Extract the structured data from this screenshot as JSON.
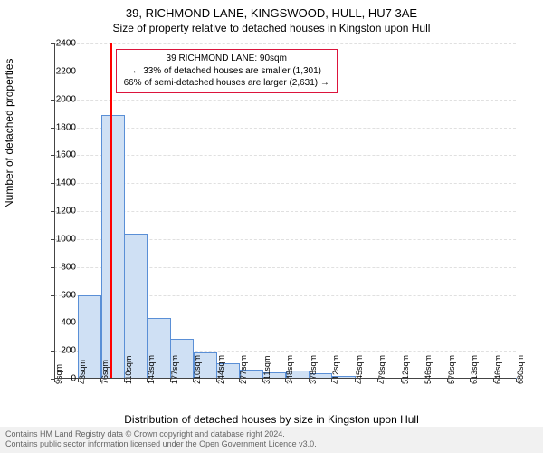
{
  "title": "39, RICHMOND LANE, KINGSWOOD, HULL, HU7 3AE",
  "subtitle": "Size of property relative to detached houses in Kingston upon Hull",
  "ylabel": "Number of detached properties",
  "xlabel": "Distribution of detached houses by size in Kingston upon Hull",
  "chart": {
    "type": "histogram",
    "bar_fill": "#cfe0f4",
    "bar_stroke": "#5a8fd6",
    "grid_color": "#e0e0e0",
    "axis_color": "#444444",
    "background": "#ffffff",
    "marker_color": "#ff0000",
    "ylim": [
      0,
      2400
    ],
    "ytick_step": 200,
    "xticks": [
      "9sqm",
      "43sqm",
      "76sqm",
      "110sqm",
      "143sqm",
      "177sqm",
      "210sqm",
      "244sqm",
      "277sqm",
      "311sqm",
      "348sqm",
      "378sqm",
      "412sqm",
      "445sqm",
      "479sqm",
      "512sqm",
      "546sqm",
      "579sqm",
      "613sqm",
      "646sqm",
      "680sqm"
    ],
    "bar_values": [
      0,
      590,
      1880,
      1030,
      430,
      280,
      180,
      105,
      60,
      40,
      55,
      35,
      15,
      0,
      0,
      0,
      0,
      0,
      0,
      0
    ],
    "bar_rel_width": 0.95,
    "marker_value": 90,
    "marker_range": [
      9,
      680
    ]
  },
  "callout": {
    "border_color": "#dc143c",
    "line1": "39 RICHMOND LANE: 90sqm",
    "line2": "← 33% of detached houses are smaller (1,301)",
    "line3": "66% of semi-detached houses are larger (2,631) →"
  },
  "footer": {
    "line1": "Contains HM Land Registry data © Crown copyright and database right 2024.",
    "line2": "Contains public sector information licensed under the Open Government Licence v3.0."
  },
  "fonts": {
    "title_size": 13,
    "subtitle_size": 12,
    "axis_label_size": 12,
    "tick_size": 10,
    "callout_size": 10,
    "footer_size": 9
  }
}
